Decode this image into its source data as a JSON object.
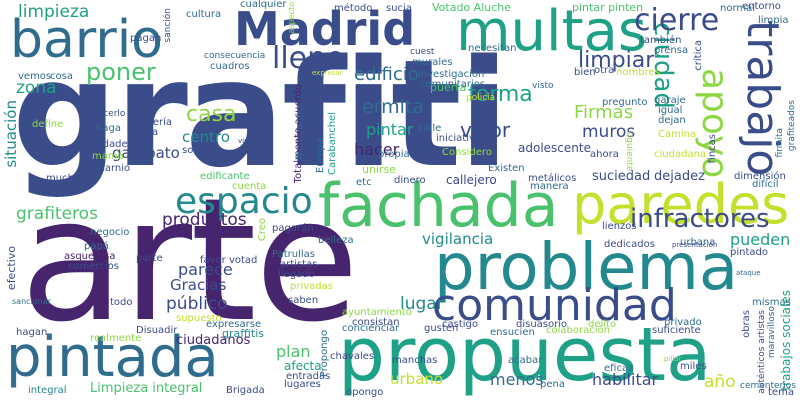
{
  "palette": {
    "dark_purple": "#46246e",
    "indigo": "#3b4c8b",
    "blue": "#2f6c8e",
    "teal": "#23898e",
    "sea_green": "#1fa187",
    "green": "#4ac16d",
    "light_green": "#8fd744",
    "lime": "#c3e02d",
    "background": "#ffffff"
  },
  "words": [
    {
      "text": "grafiti",
      "c": "#3b4c8b",
      "v": 1
    },
    {
      "text": "arte",
      "c": "#46246e",
      "v": 0
    },
    {
      "text": "propuesta",
      "c": "#1fa187",
      "v": 0
    },
    {
      "text": "fachada",
      "c": "#4ac16d",
      "v": 0
    },
    {
      "text": "problema",
      "c": "#23898e",
      "v": 0
    },
    {
      "text": "paredes",
      "c": "#c3e02d",
      "v": 0
    },
    {
      "text": "pintada",
      "c": "#2f6c8e",
      "v": 0
    },
    {
      "text": "multas",
      "c": "#1fa187",
      "v": 0
    },
    {
      "text": "barrio",
      "c": "#2f6c8e",
      "v": 0
    },
    {
      "text": "Madrid",
      "c": "#3b4c8b",
      "v": 0
    },
    {
      "text": "comunidad",
      "c": "#3b4c8b",
      "v": 0
    },
    {
      "text": "espacio",
      "c": "#23898e",
      "v": 0
    },
    {
      "text": "trabajo",
      "c": "#3b4c8b",
      "v": 1
    },
    {
      "text": "ciudad",
      "c": "#1fa187",
      "v": 1
    },
    {
      "text": "apoyo",
      "c": "#8fd744",
      "v": 0
    },
    {
      "text": "lleno",
      "c": "#3b4c8b",
      "v": 0
    },
    {
      "text": "cierre",
      "c": "#3b4c8b",
      "v": 0
    },
    {
      "text": "poner",
      "c": "#4ac16d",
      "v": 0
    },
    {
      "text": "infractores",
      "c": "#3b4c8b",
      "v": 0
    },
    {
      "text": "limpieza",
      "c": "#1fa187",
      "v": 1
    },
    {
      "text": "limpiar",
      "c": "#3b4c8b",
      "v": 0
    },
    {
      "text": "forma",
      "c": "#1fa187",
      "v": 0
    },
    {
      "text": "edificio",
      "c": "#2f6c8e",
      "v": 0
    },
    {
      "text": "casa",
      "c": "#8fd744",
      "v": 0
    },
    {
      "text": "zona",
      "c": "#1fa187",
      "v": 0
    },
    {
      "text": "situación",
      "c": "#23898e",
      "v": 1
    },
    {
      "text": "ermita",
      "c": "#2f6c8e",
      "v": 0
    },
    {
      "text": "pintar",
      "c": "#1fa187",
      "v": 0
    },
    {
      "text": "valor",
      "c": "#3b4c8b",
      "v": 0
    },
    {
      "text": "Firmas",
      "c": "#8fd744",
      "v": 0
    },
    {
      "text": "muros",
      "c": "#3b4c8b",
      "v": 0
    },
    {
      "text": "hacer",
      "c": "#46246e",
      "v": 0
    },
    {
      "text": "centro",
      "c": "#23898e",
      "v": 0
    },
    {
      "text": "garabato",
      "c": "#3b4c8b",
      "v": 0
    },
    {
      "text": "grafiteros",
      "c": "#4ac16d",
      "v": 0
    },
    {
      "text": "productos",
      "c": "#46246e",
      "v": 0
    },
    {
      "text": "vigilancia",
      "c": "#23898e",
      "v": 0
    },
    {
      "text": "suciedad",
      "c": "#3b4c8b",
      "v": 0
    },
    {
      "text": "dejadez",
      "c": "#3b4c8b",
      "v": 0
    },
    {
      "text": "pueden",
      "c": "#1fa187",
      "v": 0
    },
    {
      "text": "parece",
      "c": "#3b4c8b",
      "v": 0
    },
    {
      "text": "Gracias",
      "c": "#3b4c8b",
      "v": 0
    },
    {
      "text": "público",
      "c": "#3b4c8b",
      "v": 0
    },
    {
      "text": "lugar",
      "c": "#23898e",
      "v": 0
    },
    {
      "text": "plan",
      "c": "#4ac16d",
      "v": 0
    },
    {
      "text": "urbano",
      "c": "#c3e02d",
      "v": 0
    },
    {
      "text": "menos",
      "c": "#2f6c8e",
      "v": 0
    },
    {
      "text": "habilitar",
      "c": "#3b4c8b",
      "v": 0
    },
    {
      "text": "año",
      "c": "#c3e02d",
      "v": 0
    },
    {
      "text": "Limpieza integral",
      "c": "#4ac16d",
      "v": 0
    },
    {
      "text": "ciudadanos",
      "c": "#46246e",
      "v": 0
    },
    {
      "text": "graffitis",
      "c": "#23898e",
      "v": 0
    },
    {
      "text": "afecta",
      "c": "#1fa187",
      "v": 0
    },
    {
      "text": "Totalmente acuerdo",
      "c": "#46246e",
      "v": 1
    },
    {
      "text": "Votado Aluche",
      "c": "#4ac16d",
      "v": 0
    },
    {
      "text": "pintar pinten",
      "c": "#4ac16d",
      "v": 0
    },
    {
      "text": "cualquier",
      "c": "#2f6c8e",
      "v": 0
    },
    {
      "text": "método",
      "c": "#3b4c8b",
      "v": 0
    },
    {
      "text": "sucia",
      "c": "#3b4c8b",
      "v": 0
    },
    {
      "text": "cultura",
      "c": "#2f6c8e",
      "v": 0
    },
    {
      "text": "pagan",
      "c": "#3b4c8b",
      "v": 0
    },
    {
      "text": "necesitan",
      "c": "#2f6c8e",
      "v": 0
    },
    {
      "text": "cuest",
      "c": "#3b4c8b",
      "v": 0
    },
    {
      "text": "murales",
      "c": "#2f6c8e",
      "v": 0
    },
    {
      "text": "investigación",
      "c": "#2f6c8e",
      "v": 0
    },
    {
      "text": "comunitarios",
      "c": "#2f6c8e",
      "v": 0
    },
    {
      "text": "puerta",
      "c": "#4ac16d",
      "v": 0
    },
    {
      "text": "visto",
      "c": "#2f6c8e",
      "v": 0
    },
    {
      "text": "pregunto",
      "c": "#2f6c8e",
      "v": 0
    },
    {
      "text": "garaje",
      "c": "#2f6c8e",
      "v": 0
    },
    {
      "text": "igual",
      "c": "#2f6c8e",
      "v": 0
    },
    {
      "text": "dejan",
      "c": "#2f6c8e",
      "v": 0
    },
    {
      "text": "siguiente",
      "c": "#8fd744",
      "v": 1
    },
    {
      "text": "adolescente",
      "c": "#3b4c8b",
      "v": 0
    },
    {
      "text": "callejero",
      "c": "#3b4c8b",
      "v": 0
    },
    {
      "text": "calle",
      "c": "#2f6c8e",
      "v": 0
    },
    {
      "text": "mucha",
      "c": "#3b4c8b",
      "v": 0
    },
    {
      "text": "único",
      "c": "#3b4c8b",
      "v": 0
    },
    {
      "text": "ciudades",
      "c": "#3b4c8b",
      "v": 0
    },
    {
      "text": "mamá",
      "c": "#8fd744",
      "v": 0
    },
    {
      "text": "escarnio",
      "c": "#3b4c8b",
      "v": 0
    },
    {
      "text": "solo",
      "c": "#3b4c8b",
      "v": 0
    },
    {
      "text": "haga",
      "c": "#2f6c8e",
      "v": 0
    },
    {
      "text": "debería",
      "c": "#3b4c8b",
      "v": 0
    },
    {
      "text": "cada",
      "c": "#3b4c8b",
      "v": 0
    },
    {
      "text": "cosa",
      "c": "#2f6c8e",
      "v": 0
    },
    {
      "text": "vemos",
      "c": "#2f6c8e",
      "v": 0
    },
    {
      "text": "cuadros",
      "c": "#2f6c8e",
      "v": 0
    },
    {
      "text": "Carabanchel",
      "c": "#1fa187",
      "v": 1
    },
    {
      "text": "Europa",
      "c": "#2f6c8e",
      "v": 1
    },
    {
      "text": "Necesitamos",
      "c": "#2f6c8e",
      "v": 1
    },
    {
      "text": "iniciativa",
      "c": "#3b4c8b",
      "v": 0
    },
    {
      "text": "Considero",
      "c": "#8fd744",
      "v": 0
    },
    {
      "text": "propia",
      "c": "#2f6c8e",
      "v": 0
    },
    {
      "text": "unirse",
      "c": "#8fd744",
      "v": 0
    },
    {
      "text": "dinero",
      "c": "#3b4c8b",
      "v": 0
    },
    {
      "text": "metálicos",
      "c": "#3b4c8b",
      "v": 0
    },
    {
      "text": "manera",
      "c": "#2f6c8e",
      "v": 0
    },
    {
      "text": "Existen",
      "c": "#2f6c8e",
      "v": 0
    },
    {
      "text": "etc",
      "c": "#2f6c8e",
      "v": 0
    },
    {
      "text": "edificante",
      "c": "#4ac16d",
      "v": 0
    },
    {
      "text": "cuenta",
      "c": "#8fd744",
      "v": 0
    },
    {
      "text": "Creo",
      "c": "#8fd744",
      "v": 1
    },
    {
      "text": "pagarán",
      "c": "#3b4c8b",
      "v": 0
    },
    {
      "text": "belleza",
      "c": "#2f6c8e",
      "v": 0
    },
    {
      "text": "Patrullas",
      "c": "#2f6c8e",
      "v": 0
    },
    {
      "text": "artistas",
      "c": "#3b4c8b",
      "v": 0
    },
    {
      "text": "llegado",
      "c": "#3b4c8b",
      "v": 0
    },
    {
      "text": "privadas",
      "c": "#c3e02d",
      "v": 0
    },
    {
      "text": "saben",
      "c": "#3b4c8b",
      "v": 0
    },
    {
      "text": "favor votad",
      "c": "#3b4c8b",
      "v": 0
    },
    {
      "text": "negocio",
      "c": "#2f6c8e",
      "v": 0
    },
    {
      "text": "papá",
      "c": "#2f6c8e",
      "v": 0
    },
    {
      "text": "asquerosa",
      "c": "#46246e",
      "v": 0
    },
    {
      "text": "comercios",
      "c": "#3b4c8b",
      "v": 0
    },
    {
      "text": "parte",
      "c": "#3b4c8b",
      "v": 0
    },
    {
      "text": "todo",
      "c": "#3b4c8b",
      "v": 0
    },
    {
      "text": "hagan",
      "c": "#3b4c8b",
      "v": 0
    },
    {
      "text": "supuesto",
      "c": "#c3e02d",
      "v": 0
    },
    {
      "text": "expresarse",
      "c": "#2f6c8e",
      "v": 0
    },
    {
      "text": "realmente",
      "c": "#8fd744",
      "v": 0
    },
    {
      "text": "Disuadir",
      "c": "#3b4c8b",
      "v": 0
    },
    {
      "text": "integral",
      "c": "#23898e",
      "v": 0
    },
    {
      "text": "Brigada",
      "c": "#3b4c8b",
      "v": 0
    },
    {
      "text": "entradas",
      "c": "#3b4c8b",
      "v": 0
    },
    {
      "text": "lugares",
      "c": "#3b4c8b",
      "v": 0
    },
    {
      "text": "opongo",
      "c": "#3b4c8b",
      "v": 0
    },
    {
      "text": "ayuntamiento",
      "c": "#8fd744",
      "v": 0
    },
    {
      "text": "consistan",
      "c": "#3b4c8b",
      "v": 0
    },
    {
      "text": "concienciar",
      "c": "#2f6c8e",
      "v": 0
    },
    {
      "text": "gusten",
      "c": "#3b4c8b",
      "v": 0
    },
    {
      "text": "castigo",
      "c": "#3b4c8b",
      "v": 0
    },
    {
      "text": "disuasorio",
      "c": "#3b4c8b",
      "v": 0
    },
    {
      "text": "delito",
      "c": "#8fd744",
      "v": 0
    },
    {
      "text": "privado",
      "c": "#2f6c8e",
      "v": 0
    },
    {
      "text": "ensucien",
      "c": "#2f6c8e",
      "v": 0
    },
    {
      "text": "colaboración",
      "c": "#8fd744",
      "v": 0
    },
    {
      "text": "chavales",
      "c": "#3b4c8b",
      "v": 0
    },
    {
      "text": "manchas",
      "c": "#3b4c8b",
      "v": 0
    },
    {
      "text": "acabar",
      "c": "#2f6c8e",
      "v": 0
    },
    {
      "text": "suficiente",
      "c": "#3b4c8b",
      "v": 0
    },
    {
      "text": "mismas",
      "c": "#2f6c8e",
      "v": 0
    },
    {
      "text": "trabajos sociales",
      "c": "#1fa187",
      "v": 1
    },
    {
      "text": "obras",
      "c": "#3b4c8b",
      "v": 1
    },
    {
      "text": "eficaz",
      "c": "#2f6c8e",
      "v": 0
    },
    {
      "text": "pena",
      "c": "#2f6c8e",
      "v": 0
    },
    {
      "text": "miles",
      "c": "#3b4c8b",
      "v": 0
    },
    {
      "text": "tema",
      "c": "#3b4c8b",
      "v": 0
    },
    {
      "text": "lienzos",
      "c": "#3b4c8b",
      "v": 0
    },
    {
      "text": "pintado",
      "c": "#3b4c8b",
      "v": 0
    },
    {
      "text": "dedicados",
      "c": "#3b4c8b",
      "v": 0
    },
    {
      "text": "urbana",
      "c": "#2f6c8e",
      "v": 0
    },
    {
      "text": "dimensión",
      "c": "#3b4c8b",
      "v": 0
    },
    {
      "text": "difícil",
      "c": "#2f6c8e",
      "v": 0
    },
    {
      "text": "entorno",
      "c": "#3b4c8b",
      "v": 0
    },
    {
      "text": "limpia",
      "c": "#2f6c8e",
      "v": 0
    },
    {
      "text": "normal",
      "c": "#2f6c8e",
      "v": 0
    },
    {
      "text": "también",
      "c": "#3b4c8b",
      "v": 0
    },
    {
      "text": "prensa",
      "c": "#2f6c8e",
      "v": 0
    },
    {
      "text": "crítica",
      "c": "#3b4c8b",
      "v": 1
    },
    {
      "text": "nombres",
      "c": "#c3e02d",
      "v": 0
    },
    {
      "text": "otra",
      "c": "#3b4c8b",
      "v": 0
    },
    {
      "text": "bien",
      "c": "#3b4c8b",
      "v": 0
    },
    {
      "text": "policía",
      "c": "#c3e02d",
      "v": 0
    },
    {
      "text": "ciudadana",
      "c": "#c3e02d",
      "v": 0
    },
    {
      "text": "ahora",
      "c": "#3b4c8b",
      "v": 0
    },
    {
      "text": "Camina",
      "c": "#c3e02d",
      "v": 0
    },
    {
      "text": "fincas",
      "c": "#3b4c8b",
      "v": 1
    },
    {
      "text": "firmita",
      "c": "#2f6c8e",
      "v": 1
    },
    {
      "text": "grafiteados",
      "c": "#2f6c8e",
      "v": 1
    },
    {
      "text": "ocupar",
      "c": "#2f6c8e",
      "v": 0
    },
    {
      "text": "hacerlo",
      "c": "#3b4c8b",
      "v": 1
    },
    {
      "text": "define",
      "c": "#8fd744",
      "v": 0
    },
    {
      "text": "sanción",
      "c": "#3b4c8b",
      "v": 0
    },
    {
      "text": "consecuencia",
      "c": "#2f6c8e",
      "v": 1
    },
    {
      "text": "aspecto",
      "c": "#8fd744",
      "v": 0
    },
    {
      "text": "Propongo",
      "c": "#2f6c8e",
      "v": 1
    },
    {
      "text": "efectivo",
      "c": "#3b4c8b",
      "v": 1
    },
    {
      "text": "auténticos artistas",
      "c": "#3b4c8b",
      "v": 1
    },
    {
      "text": "maravilloso",
      "c": "#2f6c8e",
      "v": 1
    },
    {
      "text": "cementerios",
      "c": "#2f6c8e",
      "v": 1
    },
    {
      "text": "expresar",
      "c": "#c3e02d",
      "v": 0
    },
    {
      "text": "visitan",
      "c": "#3b4c8b",
      "v": 0
    },
    {
      "text": "seguro",
      "c": "#8fd744",
      "v": 0
    },
    {
      "text": "ataque",
      "c": "#2f6c8e",
      "v": 0
    },
    {
      "text": "presentación",
      "c": "#3b4c8b",
      "v": 0
    },
    {
      "text": "pillar",
      "c": "#8fd744",
      "v": 0
    },
    {
      "text": "participan",
      "c": "#3b4c8b",
      "v": 0
    },
    {
      "text": "sancionar",
      "c": "#2f6c8e",
      "v": 0
    },
    {
      "text": "real",
      "c": "#2f6c8e",
      "v": 0
    },
    {
      "text": "mejorar",
      "c": "#c3e02d",
      "v": 1
    },
    {
      "text": "limpias",
      "c": "#1fa187",
      "v": 0
    }
  ]
}
